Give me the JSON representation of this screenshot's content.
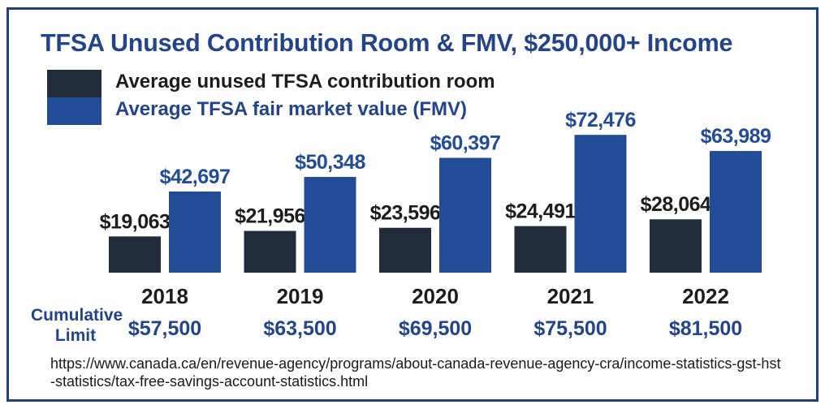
{
  "colors": {
    "unused": "#222b3a",
    "fmv": "#234c97",
    "title": "#24448a",
    "border": "#23407e"
  },
  "title": "TFSA Unused Contribution Room & FMV, $250,000+ Income",
  "legend": [
    {
      "label": "Average unused TFSA contribution room"
    },
    {
      "label": "Average TFSA fair market value (FMV)"
    }
  ],
  "chart_data": {
    "type": "bar",
    "title": "TFSA Unused Contribution Room & FMV, $250,000+ Income",
    "categories": [
      "2018",
      "2019",
      "2020",
      "2021",
      "2022"
    ],
    "series": [
      {
        "name": "Average unused TFSA contribution room",
        "values": [
          19063,
          21956,
          23596,
          24491,
          28064
        ],
        "labels": [
          "$19,063",
          "$21,956",
          "$23,596",
          "$24,491",
          "$28,064"
        ]
      },
      {
        "name": "Average TFSA fair market value (FMV)",
        "values": [
          42697,
          50348,
          60397,
          72476,
          63989
        ],
        "labels": [
          "$42,697",
          "$50,348",
          "$60,397",
          "$72,476",
          "$63,989"
        ]
      }
    ],
    "ylim": [
      0,
      80000
    ],
    "grid": false,
    "xlabel": "",
    "ylabel": "",
    "legend_position": "top-left",
    "cumulative_limit": {
      "title": "Cumulative Limit",
      "values": [
        "$57,500",
        "$63,500",
        "$69,500",
        "$75,500",
        "$81,500"
      ]
    }
  },
  "source": "https://www.canada.ca/en/revenue-agency/programs/about-canada-revenue-agency-cra/income-statistics-gst-hst-statistics/tax-free-savings-account-statistics.html"
}
